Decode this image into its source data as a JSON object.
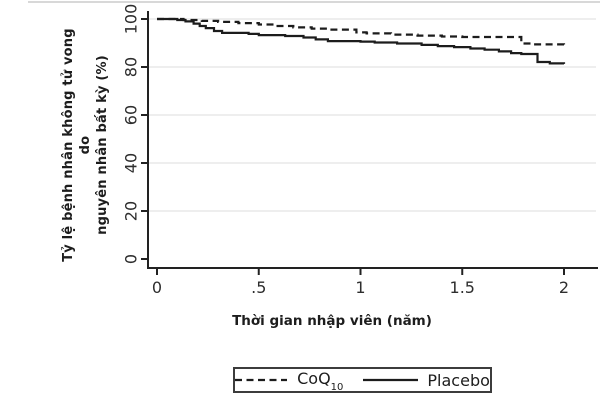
{
  "figure": {
    "top_border_color": "#d8d8d8",
    "background_color": "#ffffff",
    "axis_color": "#222222",
    "grid_color": "#e4e4e4",
    "tick_label_color": "#2e2e2e",
    "curve_color": "#1c1c1c"
  },
  "legend": {
    "border_color": "#3c3c3c",
    "items": [
      {
        "label": "CoQ",
        "label_sub": "10",
        "line_style": "dashed"
      },
      {
        "label": "Placebo",
        "label_sub": "",
        "line_style": "solid"
      }
    ]
  },
  "chart_data": {
    "type": "line",
    "subtype": "kaplan-meier-step",
    "title": "",
    "xlabel": "Thời gian nhập viên (năm)",
    "ylabel": "Tỷ lệ bệnh nhân không tử vong do nguyên nhân bất kỳ (%)",
    "ylabel_lines": [
      "Tỷ lệ bệnh nhân không tử vong do",
      "nguyên nhân bất kỳ (%)"
    ],
    "xlim": [
      0,
      2.05
    ],
    "ylim": [
      0,
      100
    ],
    "x_ticks": [
      0,
      0.5,
      1,
      1.5,
      2
    ],
    "x_tick_labels": [
      "0",
      ".5",
      "1",
      "1.5",
      "2"
    ],
    "y_ticks": [
      0,
      20,
      40,
      60,
      80,
      100
    ],
    "y_tick_labels": [
      "0",
      "20",
      "40",
      "60",
      "80",
      "100"
    ],
    "grid": "horizontal",
    "legend_position": "bottom",
    "series": [
      {
        "name": "CoQ10",
        "style": "dashed",
        "points": [
          [
            0,
            100
          ],
          [
            0.13,
            99.6
          ],
          [
            0.22,
            99.2
          ],
          [
            0.3,
            98.8
          ],
          [
            0.4,
            98.3
          ],
          [
            0.5,
            97.7
          ],
          [
            0.58,
            97.1
          ],
          [
            0.67,
            96.5
          ],
          [
            0.76,
            96.0
          ],
          [
            0.85,
            95.6
          ],
          [
            0.98,
            94.4
          ],
          [
            1.03,
            94.0
          ],
          [
            1.15,
            93.5
          ],
          [
            1.28,
            93.1
          ],
          [
            1.4,
            92.7
          ],
          [
            1.5,
            92.5
          ],
          [
            1.79,
            89.8
          ],
          [
            1.84,
            89.4
          ],
          [
            2.0,
            89.2
          ]
        ]
      },
      {
        "name": "Placebo",
        "style": "solid",
        "points": [
          [
            0,
            100
          ],
          [
            0.1,
            99.6
          ],
          [
            0.14,
            99.0
          ],
          [
            0.18,
            98.1
          ],
          [
            0.21,
            97.1
          ],
          [
            0.24,
            96.2
          ],
          [
            0.28,
            95.0
          ],
          [
            0.32,
            94.2
          ],
          [
            0.45,
            93.8
          ],
          [
            0.5,
            93.3
          ],
          [
            0.63,
            92.9
          ],
          [
            0.72,
            92.3
          ],
          [
            0.78,
            91.5
          ],
          [
            0.84,
            90.8
          ],
          [
            1.0,
            90.6
          ],
          [
            1.07,
            90.2
          ],
          [
            1.18,
            89.8
          ],
          [
            1.3,
            89.2
          ],
          [
            1.38,
            88.7
          ],
          [
            1.46,
            88.3
          ],
          [
            1.54,
            87.7
          ],
          [
            1.61,
            87.2
          ],
          [
            1.68,
            86.5
          ],
          [
            1.74,
            85.8
          ],
          [
            1.79,
            85.4
          ],
          [
            1.87,
            82.1
          ],
          [
            1.93,
            81.5
          ],
          [
            2.0,
            81.3
          ]
        ]
      }
    ]
  }
}
